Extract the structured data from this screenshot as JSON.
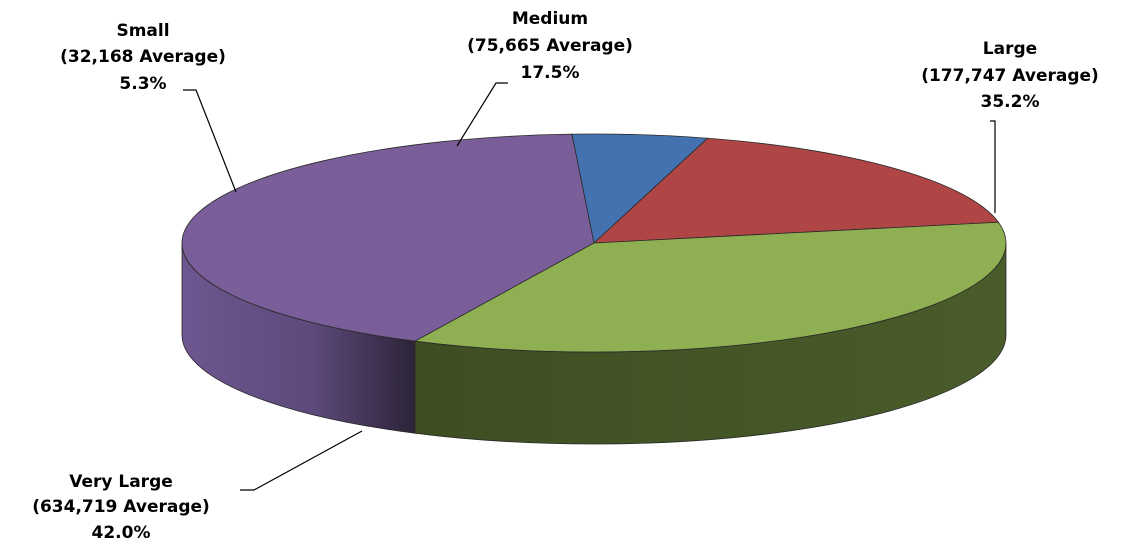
{
  "chart_data": {
    "type": "pie",
    "title": "",
    "slices": [
      {
        "name": "Very Large",
        "average": "(634,719 Average)",
        "percent_label": "42.0%",
        "value": 42.0,
        "color": "#7a5e99"
      },
      {
        "name": "Small",
        "average": "(32,168 Average)",
        "percent_label": "5.3%",
        "value": 5.3,
        "color": "#4472b0"
      },
      {
        "name": "Medium",
        "average": "(75,665 Average)",
        "percent_label": "17.5%",
        "value": 17.5,
        "color": "#b04545"
      },
      {
        "name": "Large",
        "average": "(177,747 Average)",
        "percent_label": "35.2%",
        "value": 35.2,
        "color": "#8fb052"
      }
    ],
    "legend": "none"
  }
}
